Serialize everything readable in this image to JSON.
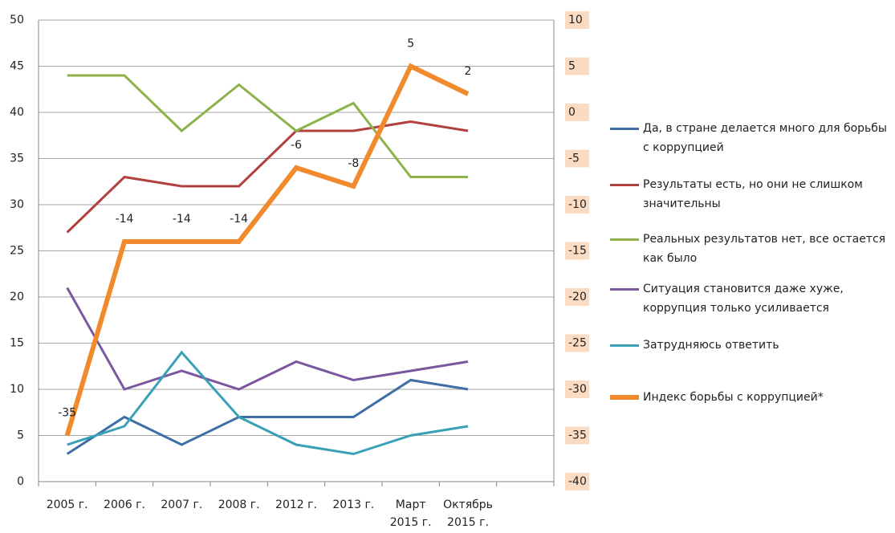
{
  "chart_data": {
    "type": "line",
    "categories": [
      "2005 г.",
      "2006 г.",
      "2007 г.",
      "2008 г.",
      "2012 г.",
      "2013 г.",
      "Март 2015 г.",
      "Октябрь 2015 г.",
      null
    ],
    "series": [
      {
        "name": "Да, в стране делается много для борьбы с коррупцией",
        "color": "#3f6ea6",
        "values": [
          3,
          7,
          4,
          7,
          7,
          7,
          11,
          10,
          null
        ]
      },
      {
        "name": "Результаты есть, но они не слишком значительны",
        "color": "#b0413e",
        "values": [
          27,
          33,
          32,
          32,
          38,
          38,
          39,
          38,
          null
        ]
      },
      {
        "name": "Реальных результатов нет, все остается как было",
        "color": "#8db24a",
        "values": [
          44,
          44,
          38,
          43,
          38,
          41,
          33,
          33,
          null
        ]
      },
      {
        "name": "Ситуация становится даже хуже, коррупция только усиливается",
        "color": "#7a58a0",
        "values": [
          21,
          10,
          12,
          10,
          13,
          11,
          12,
          13,
          null
        ]
      },
      {
        "name": "Затрудняюсь ответить",
        "color": "#3aa0b8",
        "values": [
          4,
          6,
          14,
          7,
          4,
          3,
          5,
          6,
          null
        ]
      },
      {
        "name": "Индекс борьбы с коррупцией*",
        "color": "#f08a2c",
        "axis": "y2",
        "values": [
          -35,
          -14,
          -14,
          -14,
          -6,
          -8,
          5,
          2,
          null
        ]
      }
    ],
    "ylim": [
      0,
      50
    ],
    "yticks": [
      0,
      5,
      10,
      15,
      20,
      25,
      30,
      35,
      40,
      45,
      50
    ],
    "y2lim": [
      -40,
      10
    ],
    "y2ticks": [
      -40,
      -35,
      -30,
      -25,
      -20,
      -15,
      -10,
      -5,
      0,
      5,
      10
    ],
    "grid": true
  }
}
